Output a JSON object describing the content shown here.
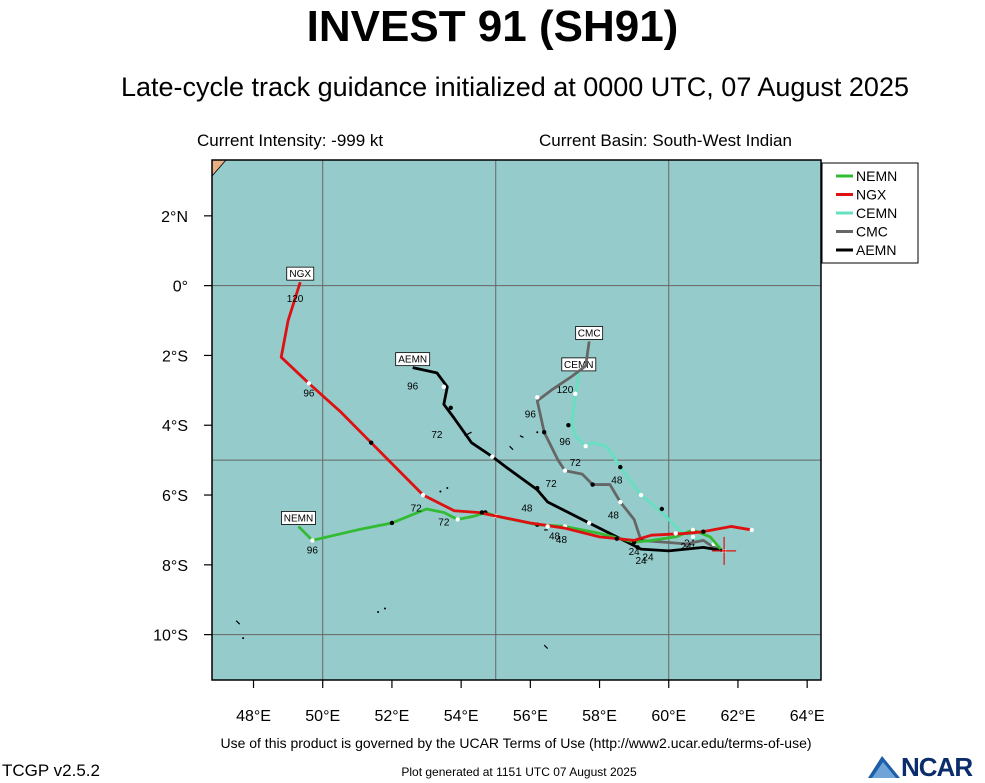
{
  "header": {
    "title": "INVEST 91 (SH91)",
    "subtitle": "Late-cycle track guidance initialized at 0000 UTC, 07 August 2025",
    "current_intensity": "Current Intensity: -999 kt",
    "current_basin": "Current Basin: South-West Indian"
  },
  "footer": {
    "terms": "Use of this product is governed by the UCAR Terms of Use (http://www2.ucar.edu/terms-of-use)",
    "version": "TCGP v2.5.2",
    "plot_generated": "Plot generated at 1151 UTC   07 August 2025",
    "logo": "NCAR"
  },
  "map": {
    "lon_range": [
      46.8,
      64.4
    ],
    "lat_range": [
      -11.3,
      3.6
    ],
    "ocean_color": "#96cbcb",
    "land_color": "#e6b083",
    "grid_lons": [
      50,
      55,
      60
    ],
    "grid_lats": [
      0,
      -5,
      -10
    ],
    "x_ticks": [
      {
        "lon": 48,
        "label": "48°E"
      },
      {
        "lon": 50,
        "label": "50°E"
      },
      {
        "lon": 52,
        "label": "52°E"
      },
      {
        "lon": 54,
        "label": "54°E"
      },
      {
        "lon": 56,
        "label": "56°E"
      },
      {
        "lon": 58,
        "label": "58°E"
      },
      {
        "lon": 60,
        "label": "60°E"
      },
      {
        "lon": 62,
        "label": "62°E"
      },
      {
        "lon": 64,
        "label": "64°E"
      }
    ],
    "y_ticks": [
      {
        "lat": 2,
        "label": "2°N"
      },
      {
        "lat": 0,
        "label": "0°"
      },
      {
        "lat": -2,
        "label": "2°S"
      },
      {
        "lat": -4,
        "label": "4°S"
      },
      {
        "lat": -6,
        "label": "6°S"
      },
      {
        "lat": -8,
        "label": "8°S"
      },
      {
        "lat": -10,
        "label": "10°S"
      }
    ],
    "current_position": {
      "lon": 61.6,
      "lat": -7.6
    },
    "islands": [
      [
        [
          54.1,
          -4.3
        ],
        [
          54.3,
          -4.2
        ]
      ],
      [
        [
          55.4,
          -4.6
        ],
        [
          55.5,
          -4.7
        ]
      ],
      [
        [
          55.7,
          -4.3
        ],
        [
          55.8,
          -4.35
        ]
      ],
      [
        [
          56.2,
          -4.2
        ]
      ],
      [
        [
          53.4,
          -5.9
        ]
      ],
      [
        [
          53.6,
          -5.8
        ]
      ],
      [
        [
          56.4,
          -7.0
        ],
        [
          56.5,
          -7.0
        ]
      ],
      [
        [
          57.4,
          -7.0
        ]
      ],
      [
        [
          56.4,
          -10.3
        ],
        [
          56.5,
          -10.4
        ]
      ],
      [
        [
          47.7,
          -10.1
        ]
      ],
      [
        [
          47.5,
          -9.6
        ],
        [
          47.6,
          -9.7
        ]
      ],
      [
        [
          51.6,
          -9.35
        ]
      ],
      [
        [
          51.8,
          -9.25
        ]
      ]
    ]
  },
  "chart_data": {
    "type": "track-map",
    "legend": [
      {
        "name": "NEMN",
        "color": "#33bb33"
      },
      {
        "name": "NGX",
        "color": "#dd1111"
      },
      {
        "name": "CEMN",
        "color": "#66e0c0"
      },
      {
        "name": "CMC",
        "color": "#666666"
      },
      {
        "name": "AEMN",
        "color": "#000000"
      }
    ],
    "tracks": [
      {
        "name": "NEMN",
        "color": "#33bb33",
        "end_label": "NEMN",
        "points": [
          [
            61.5,
            -7.55
          ],
          [
            61.2,
            -7.2
          ],
          [
            60.7,
            -7.0
          ],
          [
            60.2,
            -7.2
          ],
          [
            59.5,
            -7.3
          ],
          [
            59.0,
            -7.35
          ],
          [
            58.0,
            -7.1
          ],
          [
            57.0,
            -6.9
          ],
          [
            56.2,
            -6.85
          ],
          [
            55.0,
            -6.6
          ],
          [
            54.7,
            -6.5
          ],
          [
            54.4,
            -6.6
          ],
          [
            53.9,
            -6.7
          ],
          [
            53.5,
            -6.5
          ],
          [
            53.0,
            -6.4
          ],
          [
            52.0,
            -6.8
          ],
          [
            51.0,
            -7.0
          ],
          [
            49.7,
            -7.3
          ],
          [
            49.3,
            -6.9
          ]
        ],
        "markers": [
          [
            60.7,
            -7.0
          ],
          [
            59.0,
            -7.35
          ],
          [
            57.0,
            -6.9
          ],
          [
            56.2,
            -6.85
          ],
          [
            55.0,
            -6.6
          ],
          [
            54.7,
            -6.5
          ],
          [
            53.9,
            -6.7
          ],
          [
            52.0,
            -6.8
          ],
          [
            49.7,
            -7.3
          ]
        ],
        "hours": [
          {
            "lon": 59.0,
            "lat": -7.35,
            "label": "24"
          },
          {
            "lon": 56.7,
            "lat": -6.9,
            "label": "48"
          },
          {
            "lon": 53.5,
            "lat": -6.5,
            "label": "72"
          },
          {
            "lon": 49.7,
            "lat": -7.3,
            "label": "96"
          }
        ]
      },
      {
        "name": "NGX",
        "color": "#dd1111",
        "end_label": "NGX",
        "points": [
          [
            62.4,
            -7.0
          ],
          [
            61.8,
            -6.9
          ],
          [
            61.0,
            -7.05
          ],
          [
            60.5,
            -7.1
          ],
          [
            59.5,
            -7.15
          ],
          [
            59.0,
            -7.3
          ],
          [
            58.0,
            -7.2
          ],
          [
            57.0,
            -6.95
          ],
          [
            56.0,
            -6.8
          ],
          [
            55.0,
            -6.6
          ],
          [
            54.5,
            -6.5
          ],
          [
            53.8,
            -6.45
          ],
          [
            52.9,
            -6.0
          ],
          [
            51.5,
            -4.6
          ],
          [
            50.5,
            -3.6
          ],
          [
            49.6,
            -2.8
          ],
          [
            48.8,
            -2.05
          ],
          [
            49.0,
            -1.0
          ],
          [
            49.35,
            0.1
          ]
        ],
        "markers": [
          [
            62.4,
            -7.0
          ],
          [
            61.0,
            -7.05
          ],
          [
            60.2,
            -7.1
          ],
          [
            58.5,
            -7.25
          ],
          [
            56.5,
            -6.9
          ],
          [
            54.6,
            -6.5
          ],
          [
            52.9,
            -6.0
          ],
          [
            51.4,
            -4.5
          ],
          [
            49.6,
            -2.8
          ]
        ],
        "hours": [
          {
            "lon": 60.5,
            "lat": -7.2,
            "label": "24"
          },
          {
            "lon": 56.9,
            "lat": -7.0,
            "label": "48"
          },
          {
            "lon": 52.7,
            "lat": -6.1,
            "label": "72"
          },
          {
            "lon": 49.6,
            "lat": -2.8,
            "label": "96"
          },
          {
            "lon": 49.2,
            "lat": -0.1,
            "label": "120"
          }
        ]
      },
      {
        "name": "CEMN",
        "color": "#66e0c0",
        "end_label": "CEMN",
        "points": [
          [
            61.6,
            -7.6
          ],
          [
            61.0,
            -7.3
          ],
          [
            60.7,
            -7.2
          ],
          [
            60.3,
            -7.0
          ],
          [
            59.8,
            -6.5
          ],
          [
            59.2,
            -6.0
          ],
          [
            58.6,
            -5.2
          ],
          [
            58.2,
            -4.6
          ],
          [
            57.8,
            -4.5
          ],
          [
            57.6,
            -4.6
          ],
          [
            57.3,
            -4.3
          ],
          [
            57.2,
            -3.9
          ],
          [
            57.3,
            -3.2
          ],
          [
            57.4,
            -2.5
          ]
        ],
        "markers": [
          [
            60.7,
            -7.2
          ],
          [
            59.8,
            -6.4
          ],
          [
            59.2,
            -6.0
          ],
          [
            58.6,
            -5.2
          ],
          [
            57.6,
            -4.6
          ],
          [
            57.1,
            -4.0
          ],
          [
            57.3,
            -3.1
          ]
        ],
        "hours": [
          {
            "lon": 60.6,
            "lat": -7.1,
            "label": "24"
          },
          {
            "lon": 58.5,
            "lat": -5.3,
            "label": "48"
          },
          {
            "lon": 57.3,
            "lat": -4.8,
            "label": "72"
          },
          {
            "lon": 57.0,
            "lat": -4.2,
            "label": "96"
          },
          {
            "lon": 57.0,
            "lat": -2.7,
            "label": "120"
          }
        ]
      },
      {
        "name": "CMC",
        "color": "#666666",
        "end_label": "CMC",
        "points": [
          [
            61.6,
            -7.6
          ],
          [
            61.3,
            -7.5
          ],
          [
            61.0,
            -7.3
          ],
          [
            60.5,
            -7.4
          ],
          [
            59.2,
            -7.3
          ],
          [
            59.0,
            -6.7
          ],
          [
            58.6,
            -6.2
          ],
          [
            58.3,
            -5.7
          ],
          [
            57.8,
            -5.7
          ],
          [
            57.5,
            -5.4
          ],
          [
            57.0,
            -5.3
          ],
          [
            56.8,
            -5.0
          ],
          [
            56.4,
            -4.2
          ],
          [
            56.2,
            -3.3
          ],
          [
            56.6,
            -3.0
          ],
          [
            57.2,
            -2.6
          ],
          [
            57.6,
            -2.3
          ],
          [
            57.7,
            -1.6
          ]
        ],
        "markers": [
          [
            61.3,
            -7.4
          ],
          [
            59.2,
            -7.3
          ],
          [
            58.6,
            -6.2
          ],
          [
            57.8,
            -5.7
          ],
          [
            57.0,
            -5.3
          ],
          [
            56.4,
            -4.2
          ],
          [
            56.2,
            -3.2
          ]
        ],
        "hours": [
          {
            "lon": 59.4,
            "lat": -7.5,
            "label": "24"
          },
          {
            "lon": 58.4,
            "lat": -6.3,
            "label": "48"
          },
          {
            "lon": 56.6,
            "lat": -5.4,
            "label": "72"
          },
          {
            "lon": 56.0,
            "lat": -3.4,
            "label": "96"
          }
        ]
      },
      {
        "name": "AEMN",
        "color": "#000000",
        "end_label": "AEMN",
        "points": [
          [
            61.6,
            -7.6
          ],
          [
            61.0,
            -7.5
          ],
          [
            60.5,
            -7.55
          ],
          [
            60.0,
            -7.6
          ],
          [
            59.2,
            -7.55
          ],
          [
            58.8,
            -7.35
          ],
          [
            57.7,
            -6.8
          ],
          [
            56.5,
            -6.2
          ],
          [
            56.2,
            -5.85
          ],
          [
            55.3,
            -5.2
          ],
          [
            54.9,
            -4.9
          ],
          [
            54.3,
            -4.5
          ],
          [
            53.8,
            -3.8
          ],
          [
            53.5,
            -3.4
          ],
          [
            53.6,
            -2.9
          ],
          [
            53.3,
            -2.5
          ],
          [
            52.6,
            -2.35
          ]
        ],
        "markers": [
          [
            61.6,
            -7.6
          ],
          [
            59.1,
            -7.5
          ],
          [
            57.7,
            -6.8
          ],
          [
            56.2,
            -5.8
          ],
          [
            54.9,
            -4.9
          ],
          [
            53.7,
            -3.5
          ],
          [
            53.5,
            -2.9
          ]
        ],
        "hours": [
          {
            "lon": 59.2,
            "lat": -7.6,
            "label": "24"
          },
          {
            "lon": 55.9,
            "lat": -6.1,
            "label": "48"
          },
          {
            "lon": 53.3,
            "lat": -4.0,
            "label": "72"
          },
          {
            "lon": 52.6,
            "lat": -2.6,
            "label": "96"
          }
        ]
      }
    ]
  }
}
